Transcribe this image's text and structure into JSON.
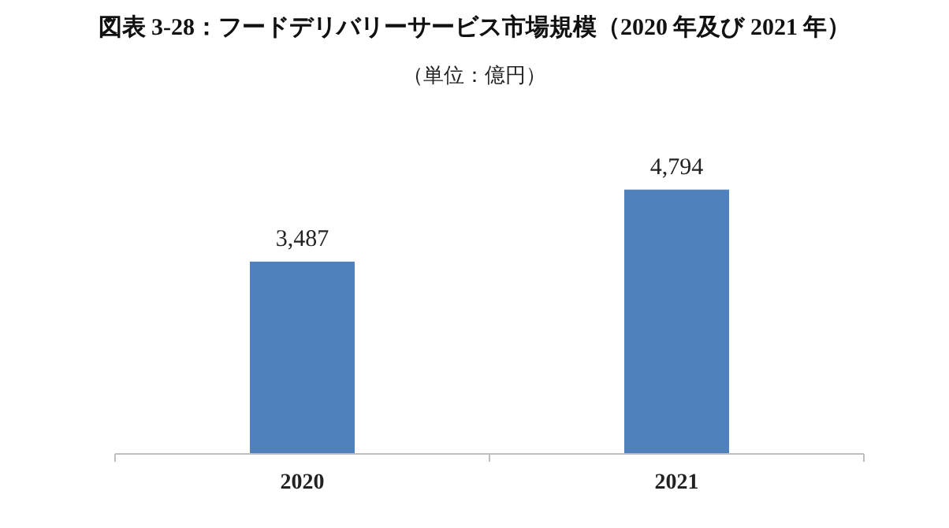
{
  "chart_data": {
    "type": "bar",
    "title": "図表 3-28：フードデリバリーサービス市場規模（2020 年及び 2021 年）",
    "subtitle": "（単位：億円）",
    "categories": [
      "2020",
      "2021"
    ],
    "values": [
      3487,
      4794
    ],
    "value_labels": [
      "3,487",
      "4,794"
    ],
    "color": "#4f81bd"
  }
}
